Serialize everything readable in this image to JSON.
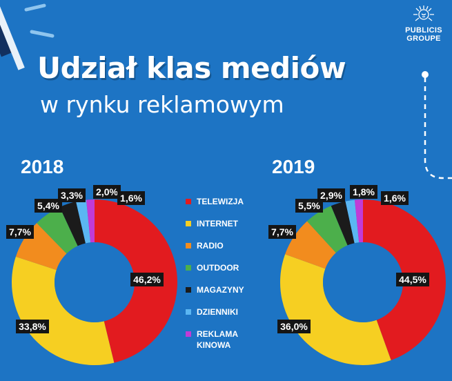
{
  "header": {
    "title": "Udział klas mediów",
    "subtitle": "w rynku reklamowym"
  },
  "logo": {
    "line1": "PUBLICIS",
    "line2": "GROUPE"
  },
  "colors": {
    "background": "#1d74c4",
    "telewizja": "#e21b1f",
    "internet": "#f6cf22",
    "radio": "#f28c1e",
    "outdoor": "#4caf4b",
    "magazyny": "#1b1b1b",
    "dzienniki": "#5bb6f2",
    "reklama_kinowa": "#c13bd6"
  },
  "legend": [
    {
      "label": "TELEWIZJA",
      "color": "#e21b1f"
    },
    {
      "label": "INTERNET",
      "color": "#f6cf22"
    },
    {
      "label": "RADIO",
      "color": "#f28c1e"
    },
    {
      "label": "OUTDOOR",
      "color": "#4caf4b"
    },
    {
      "label": "MAGAZYNY",
      "color": "#1b1b1b"
    },
    {
      "label": "DZIENNIKI",
      "color": "#5bb6f2"
    },
    {
      "label": "REKLAMA KINOWA",
      "color": "#c13bd6"
    }
  ],
  "chart_data": [
    {
      "type": "pie",
      "title": "2018",
      "categories": [
        "TELEWIZJA",
        "INTERNET",
        "RADIO",
        "OUTDOOR",
        "MAGAZYNY",
        "DZIENNIKI",
        "REKLAMA KINOWA"
      ],
      "values": [
        46.2,
        33.8,
        7.7,
        5.4,
        3.3,
        2.0,
        1.6
      ],
      "value_labels": [
        "46,2%",
        "33,8%",
        "7,7%",
        "5,4%",
        "3,3%",
        "2,0%",
        "1,6%"
      ]
    },
    {
      "type": "pie",
      "title": "2019",
      "categories": [
        "TELEWIZJA",
        "INTERNET",
        "RADIO",
        "OUTDOOR",
        "MAGAZYNY",
        "DZIENNIKI",
        "REKLAMA KINOWA"
      ],
      "values": [
        44.5,
        36.0,
        7.7,
        5.5,
        2.9,
        1.8,
        1.6
      ],
      "value_labels": [
        "44,5%",
        "36,0%",
        "7,7%",
        "5,5%",
        "2,9%",
        "1,8%",
        "1,6%"
      ]
    }
  ]
}
